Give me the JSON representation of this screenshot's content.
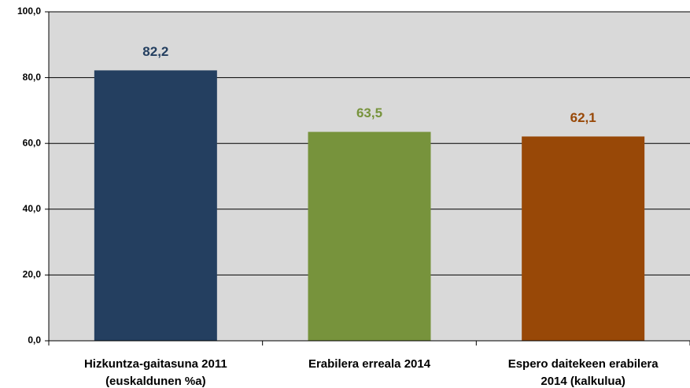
{
  "chart_data": {
    "type": "bar",
    "categories": [
      [
        "Hizkuntza-gaitasuna 2011",
        "(euskaldunen %a)"
      ],
      [
        "Erabilera erreala 2014"
      ],
      [
        "Espero daitekeen erabilera",
        "2014 (kalkulua)"
      ]
    ],
    "values": [
      82.2,
      63.5,
      62.1
    ],
    "value_labels": [
      "82,2",
      "63,5",
      "62,1"
    ],
    "colors": [
      "#243f60",
      "#77933c",
      "#984807"
    ],
    "ylim": [
      0,
      100
    ],
    "yticks": [
      {
        "value": 0,
        "label": "0,0"
      },
      {
        "value": 20,
        "label": "20,0"
      },
      {
        "value": 40,
        "label": "40,0"
      },
      {
        "value": 60,
        "label": "60,0"
      },
      {
        "value": 80,
        "label": "80,0"
      },
      {
        "value": 100,
        "label": "100,0"
      }
    ],
    "grid": true
  }
}
